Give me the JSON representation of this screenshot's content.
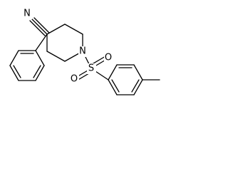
{
  "atoms": [
    "N",
    "N",
    "S",
    "O",
    "O"
  ]
}
